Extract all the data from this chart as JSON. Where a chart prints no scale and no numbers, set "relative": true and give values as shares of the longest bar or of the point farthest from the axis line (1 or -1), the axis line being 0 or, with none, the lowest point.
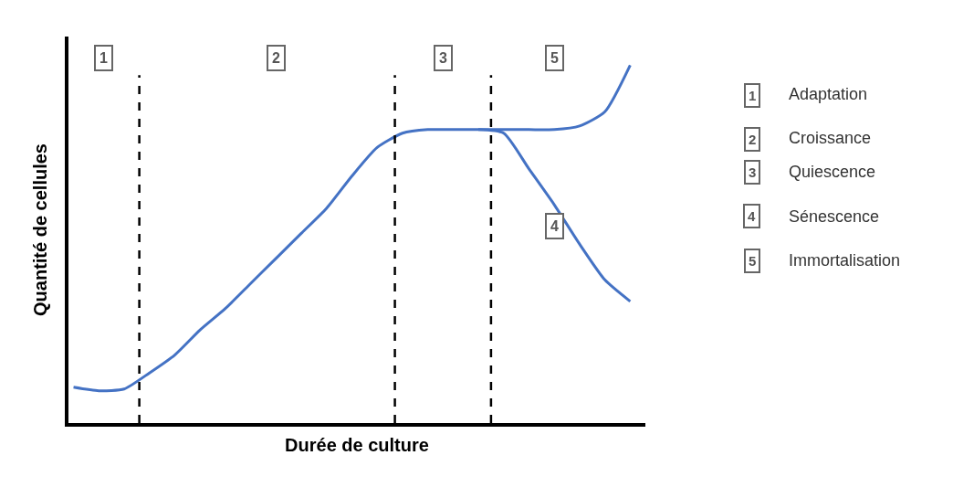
{
  "chart_data": {
    "type": "line",
    "relative": true,
    "xlabel": "Durée de culture",
    "ylabel": "Quantité de cellules",
    "categories": [
      null,
      null,
      null,
      null,
      null,
      null,
      null,
      null,
      null,
      null,
      null,
      null,
      null,
      null,
      null,
      null,
      null,
      null,
      null,
      null,
      null,
      null,
      null
    ],
    "series": [
      {
        "color": "#4472c4",
        "values": [
          0.1,
          0.09,
          0.095,
          0.14,
          0.19,
          0.26,
          0.32,
          0.39,
          0.46,
          0.53,
          0.6,
          0.69,
          0.77,
          0.81,
          0.82,
          0.82,
          0.82,
          0.82,
          0.82,
          0.82,
          0.83,
          0.87,
          1.0
        ]
      },
      {
        "color": "#4472c4",
        "values": [
          null,
          null,
          null,
          null,
          null,
          null,
          null,
          null,
          null,
          null,
          null,
          null,
          null,
          null,
          null,
          null,
          0.82,
          0.81,
          0.71,
          0.61,
          0.5,
          0.4,
          0.34
        ]
      }
    ],
    "annotations": [
      "1",
      "2",
      "3",
      "5",
      "4",
      "1",
      "Adaptation",
      "2",
      "Croissance",
      "3",
      "Quiescence",
      "4",
      "Sénescence",
      "5",
      "Immortalisation"
    ],
    "marker": "none",
    "line_style": "solid"
  }
}
